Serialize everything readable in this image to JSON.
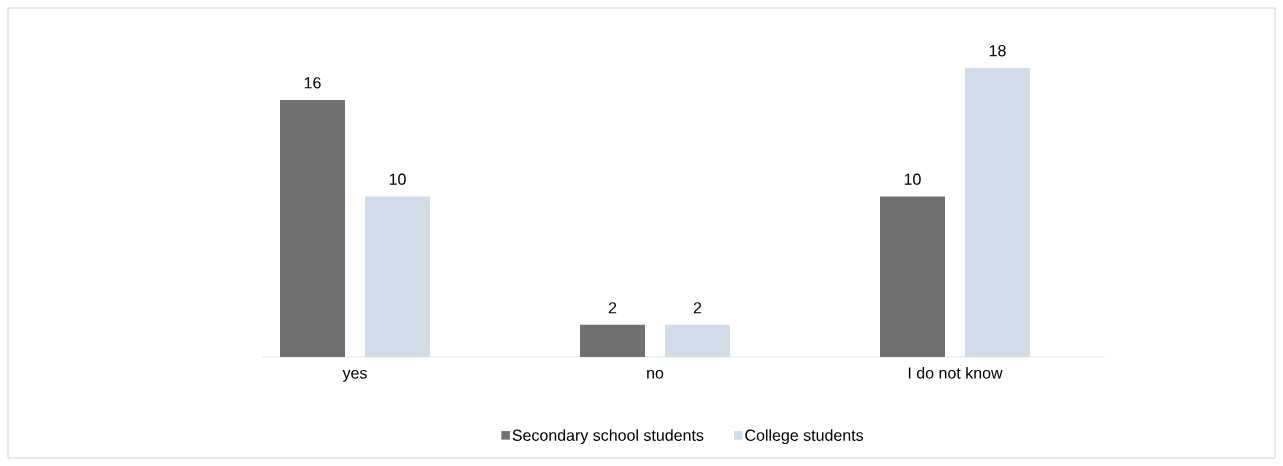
{
  "chart_data": {
    "type": "bar",
    "categories": [
      "yes",
      "no",
      "I do not know"
    ],
    "series": [
      {
        "name": "Secondary school students",
        "color": "#6e7072",
        "values": [
          16,
          2,
          10
        ]
      },
      {
        "name": "College students",
        "color": "#d0dde8",
        "values": [
          10,
          2,
          18
        ]
      }
    ],
    "data_labels": true,
    "legend": "bottom",
    "grid": false
  }
}
